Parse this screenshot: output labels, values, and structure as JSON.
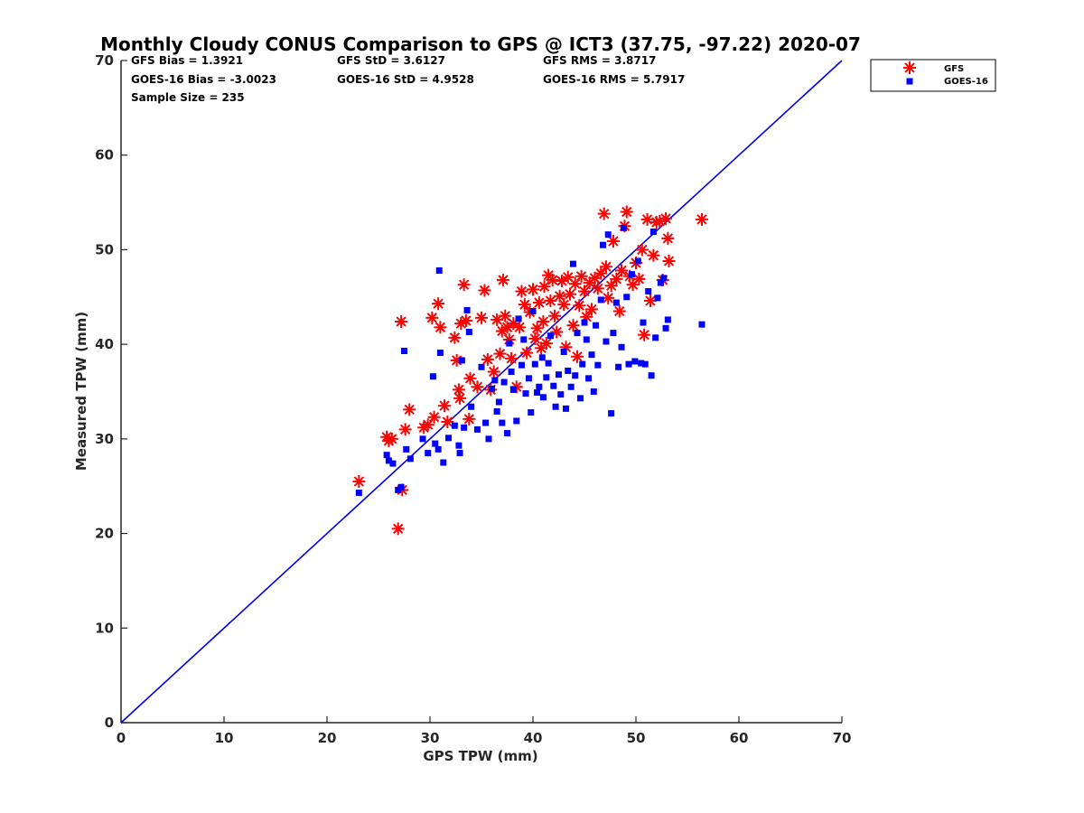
{
  "chart_data": {
    "type": "scatter",
    "title": "Monthly Cloudy CONUS Comparison to GPS @ ICT3 (37.75, -97.22) 2020-07",
    "xlabel": "GPS TPW (mm)",
    "ylabel": "Measured TPW (mm)",
    "xlim": [
      0,
      70
    ],
    "ylim": [
      0,
      70
    ],
    "xticks": [
      0,
      10,
      20,
      30,
      40,
      50,
      60,
      70
    ],
    "yticks": [
      0,
      10,
      20,
      30,
      40,
      50,
      60,
      70
    ],
    "grid": false,
    "legend_position": "top-right, outside plot",
    "reference_line": {
      "x": [
        0,
        70
      ],
      "y": [
        0,
        70
      ],
      "color": "#0000ee"
    },
    "stats": {
      "gfs_bias": "GFS Bias = 1.3921",
      "gfs_std": "GFS StD = 3.6127",
      "gfs_rms": "GFS RMS = 3.8717",
      "goes_bias": "GOES-16 Bias = -3.0023",
      "goes_std": "GOES-16 StD = 4.9528",
      "goes_rms": "GOES-16 RMS = 5.7917",
      "sample_size": "Sample Size = 235"
    },
    "series": [
      {
        "name": "GFS",
        "marker": "asterisk",
        "color": "#ff0000",
        "points": [
          [
            23.1,
            25.5
          ],
          [
            25.8,
            30.2
          ],
          [
            26.0,
            29.8
          ],
          [
            26.3,
            30.0
          ],
          [
            26.9,
            20.5
          ],
          [
            27.2,
            42.4
          ],
          [
            27.3,
            24.6
          ],
          [
            27.6,
            31.0
          ],
          [
            28.0,
            33.1
          ],
          [
            29.4,
            31.2
          ],
          [
            29.8,
            31.5
          ],
          [
            30.2,
            42.8
          ],
          [
            30.4,
            32.3
          ],
          [
            30.8,
            44.3
          ],
          [
            31.0,
            41.8
          ],
          [
            31.4,
            33.5
          ],
          [
            31.7,
            31.8
          ],
          [
            32.4,
            40.7
          ],
          [
            32.6,
            38.3
          ],
          [
            32.8,
            35.2
          ],
          [
            32.9,
            34.3
          ],
          [
            33.0,
            42.2
          ],
          [
            33.3,
            46.3
          ],
          [
            33.5,
            42.5
          ],
          [
            33.8,
            32.1
          ],
          [
            33.9,
            36.4
          ],
          [
            34.6,
            35.5
          ],
          [
            35.0,
            42.8
          ],
          [
            35.3,
            45.7
          ],
          [
            35.6,
            38.4
          ],
          [
            35.9,
            35.2
          ],
          [
            36.2,
            37.1
          ],
          [
            36.5,
            42.6
          ],
          [
            36.8,
            39.0
          ],
          [
            37.0,
            41.4
          ],
          [
            37.1,
            46.8
          ],
          [
            37.3,
            43.0
          ],
          [
            37.5,
            41.8
          ],
          [
            37.7,
            40.5
          ],
          [
            37.9,
            38.5
          ],
          [
            38.1,
            42.2
          ],
          [
            38.4,
            35.5
          ],
          [
            38.7,
            41.8
          ],
          [
            38.9,
            45.6
          ],
          [
            39.2,
            44.2
          ],
          [
            39.4,
            39.1
          ],
          [
            39.7,
            43.4
          ],
          [
            40.0,
            45.8
          ],
          [
            40.2,
            40.6
          ],
          [
            40.4,
            41.7
          ],
          [
            40.6,
            44.4
          ],
          [
            40.8,
            39.6
          ],
          [
            41.0,
            42.4
          ],
          [
            41.1,
            46.1
          ],
          [
            41.3,
            40.1
          ],
          [
            41.5,
            47.3
          ],
          [
            41.7,
            44.6
          ],
          [
            41.9,
            46.8
          ],
          [
            42.1,
            43.0
          ],
          [
            42.3,
            41.3
          ],
          [
            42.6,
            45.1
          ],
          [
            42.8,
            46.7
          ],
          [
            43.0,
            44.2
          ],
          [
            43.2,
            39.7
          ],
          [
            43.4,
            47.1
          ],
          [
            43.6,
            45.3
          ],
          [
            43.9,
            42.0
          ],
          [
            44.1,
            46.4
          ],
          [
            44.3,
            38.7
          ],
          [
            44.5,
            44.1
          ],
          [
            44.7,
            47.2
          ],
          [
            45.0,
            45.6
          ],
          [
            45.2,
            42.9
          ],
          [
            45.5,
            46.5
          ],
          [
            45.7,
            43.7
          ],
          [
            46.0,
            47.0
          ],
          [
            46.3,
            45.9
          ],
          [
            46.6,
            47.5
          ],
          [
            46.9,
            53.8
          ],
          [
            47.1,
            48.2
          ],
          [
            47.3,
            44.9
          ],
          [
            47.6,
            46.2
          ],
          [
            47.8,
            50.9
          ],
          [
            48.1,
            46.9
          ],
          [
            48.4,
            43.5
          ],
          [
            48.6,
            47.8
          ],
          [
            48.9,
            52.5
          ],
          [
            49.1,
            54.0
          ],
          [
            49.4,
            47.2
          ],
          [
            49.7,
            46.3
          ],
          [
            50.0,
            48.6
          ],
          [
            50.3,
            46.9
          ],
          [
            50.6,
            50.0
          ],
          [
            50.8,
            41.0
          ],
          [
            51.1,
            53.2
          ],
          [
            51.4,
            44.6
          ],
          [
            51.7,
            49.4
          ],
          [
            52.0,
            52.9
          ],
          [
            52.3,
            53.0
          ],
          [
            52.6,
            46.8
          ],
          [
            52.9,
            53.3
          ],
          [
            53.1,
            51.2
          ],
          [
            53.2,
            48.8
          ],
          [
            56.4,
            53.2
          ]
        ]
      },
      {
        "name": "GOES-16",
        "marker": "square",
        "color": "#0000ff",
        "points": [
          [
            23.1,
            24.3
          ],
          [
            25.8,
            28.3
          ],
          [
            26.0,
            27.7
          ],
          [
            26.4,
            27.4
          ],
          [
            26.9,
            24.6
          ],
          [
            27.2,
            24.9
          ],
          [
            27.5,
            39.3
          ],
          [
            27.7,
            28.9
          ],
          [
            28.1,
            27.9
          ],
          [
            29.3,
            30.0
          ],
          [
            29.8,
            28.5
          ],
          [
            30.3,
            36.6
          ],
          [
            30.5,
            29.5
          ],
          [
            30.8,
            28.9
          ],
          [
            30.9,
            47.8
          ],
          [
            31.0,
            39.1
          ],
          [
            31.3,
            27.5
          ],
          [
            31.8,
            30.1
          ],
          [
            32.4,
            31.4
          ],
          [
            32.8,
            29.3
          ],
          [
            32.9,
            28.5
          ],
          [
            33.1,
            38.3
          ],
          [
            33.3,
            31.2
          ],
          [
            33.6,
            43.6
          ],
          [
            33.8,
            41.3
          ],
          [
            34.0,
            33.4
          ],
          [
            34.6,
            31.0
          ],
          [
            35.0,
            37.6
          ],
          [
            35.4,
            31.7
          ],
          [
            35.7,
            30.0
          ],
          [
            36.0,
            35.3
          ],
          [
            36.3,
            36.2
          ],
          [
            36.5,
            32.9
          ],
          [
            36.7,
            33.9
          ],
          [
            37.0,
            31.7
          ],
          [
            37.2,
            36.0
          ],
          [
            37.5,
            30.6
          ],
          [
            37.7,
            40.1
          ],
          [
            37.9,
            37.1
          ],
          [
            38.1,
            35.2
          ],
          [
            38.4,
            31.9
          ],
          [
            38.6,
            42.7
          ],
          [
            38.9,
            37.8
          ],
          [
            39.1,
            40.5
          ],
          [
            39.3,
            34.8
          ],
          [
            39.6,
            36.4
          ],
          [
            39.8,
            32.8
          ],
          [
            40.0,
            43.5
          ],
          [
            40.2,
            37.9
          ],
          [
            40.4,
            34.9
          ],
          [
            40.6,
            35.5
          ],
          [
            40.9,
            38.6
          ],
          [
            41.0,
            34.4
          ],
          [
            41.3,
            36.5
          ],
          [
            41.5,
            38.0
          ],
          [
            41.7,
            40.9
          ],
          [
            42.0,
            35.6
          ],
          [
            42.2,
            33.4
          ],
          [
            42.5,
            36.8
          ],
          [
            42.7,
            34.7
          ],
          [
            43.0,
            39.2
          ],
          [
            43.2,
            33.2
          ],
          [
            43.4,
            37.2
          ],
          [
            43.7,
            35.5
          ],
          [
            43.9,
            48.5
          ],
          [
            44.1,
            36.7
          ],
          [
            44.3,
            41.2
          ],
          [
            44.6,
            34.3
          ],
          [
            44.8,
            37.9
          ],
          [
            45.0,
            42.3
          ],
          [
            45.2,
            40.5
          ],
          [
            45.4,
            36.4
          ],
          [
            45.7,
            38.9
          ],
          [
            45.9,
            35.0
          ],
          [
            46.1,
            42.0
          ],
          [
            46.3,
            37.8
          ],
          [
            46.6,
            44.7
          ],
          [
            46.8,
            50.5
          ],
          [
            47.1,
            40.3
          ],
          [
            47.3,
            51.6
          ],
          [
            47.6,
            32.7
          ],
          [
            47.8,
            41.2
          ],
          [
            48.1,
            44.4
          ],
          [
            48.3,
            37.6
          ],
          [
            48.6,
            39.7
          ],
          [
            48.8,
            52.3
          ],
          [
            49.1,
            45.0
          ],
          [
            49.3,
            37.9
          ],
          [
            49.6,
            47.4
          ],
          [
            49.9,
            38.2
          ],
          [
            50.2,
            48.8
          ],
          [
            50.5,
            38.0
          ],
          [
            50.7,
            42.3
          ],
          [
            50.9,
            37.9
          ],
          [
            51.2,
            45.6
          ],
          [
            51.5,
            36.7
          ],
          [
            51.7,
            51.9
          ],
          [
            51.9,
            40.7
          ],
          [
            52.1,
            44.9
          ],
          [
            52.4,
            46.5
          ],
          [
            52.7,
            47.0
          ],
          [
            52.9,
            41.7
          ],
          [
            53.1,
            42.6
          ],
          [
            56.4,
            42.1
          ]
        ]
      }
    ]
  }
}
